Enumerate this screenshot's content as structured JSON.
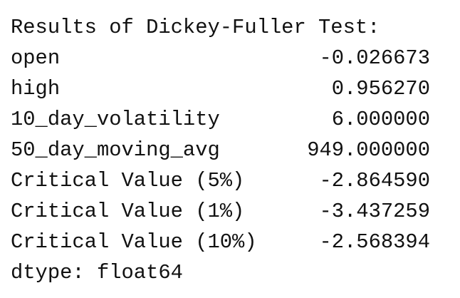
{
  "header": {
    "title": "Results of Dickey-Fuller Test:"
  },
  "table": {
    "rows": [
      [
        "open",
        "-0.026673"
      ],
      [
        "high",
        "0.956270"
      ],
      [
        "10_day_volatility",
        "6.000000"
      ],
      [
        "50_day_moving_avg",
        "949.000000"
      ],
      [
        "Critical Value (5%)",
        "-2.864590"
      ],
      [
        "Critical Value (1%)",
        "-3.437259"
      ],
      [
        "Critical Value (10%)",
        "-2.568394"
      ]
    ]
  },
  "footer": {
    "dtype": "dtype: float64"
  }
}
